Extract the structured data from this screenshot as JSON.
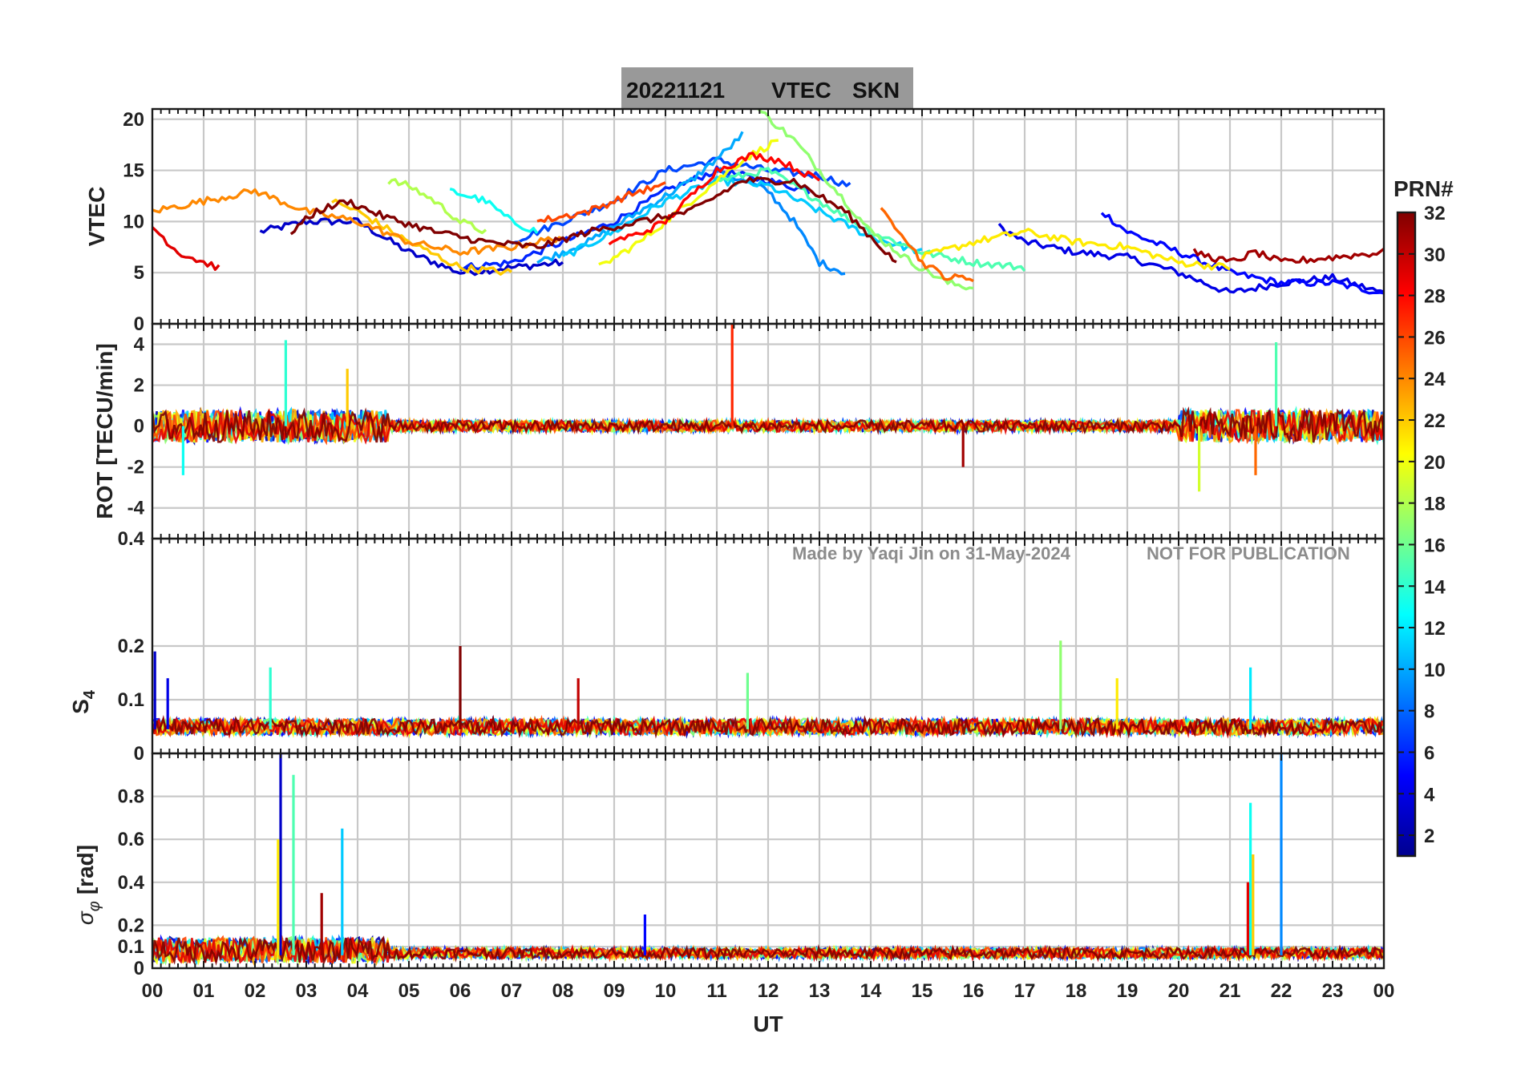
{
  "title": {
    "date": "20221121",
    "quantity": "VTEC",
    "station": "SKN"
  },
  "watermark": {
    "made_by": "Made by Yaqi Jin on 31-May-2024",
    "notice": "NOT FOR PUBLICATION"
  },
  "colorbar": {
    "title": "PRN#",
    "min": 1,
    "max": 32,
    "tick_labels": [
      "2",
      "4",
      "6",
      "8",
      "10",
      "12",
      "14",
      "16",
      "18",
      "20",
      "22",
      "24",
      "26",
      "28",
      "30",
      "32"
    ],
    "colormap": "jet",
    "colors": [
      "#00008f",
      "#0000ff",
      "#0080ff",
      "#00ffff",
      "#80ff80",
      "#ffff00",
      "#ff8000",
      "#ff0000",
      "#800000"
    ]
  },
  "chart_data": {
    "type": "line",
    "x_axis": {
      "label": "UT",
      "range": [
        0,
        24
      ],
      "unit": "hours",
      "tick_labels": [
        "00",
        "01",
        "02",
        "03",
        "04",
        "05",
        "06",
        "07",
        "08",
        "09",
        "10",
        "11",
        "12",
        "13",
        "14",
        "15",
        "16",
        "17",
        "18",
        "19",
        "20",
        "21",
        "22",
        "23",
        "00"
      ]
    },
    "panels": [
      {
        "id": "vtec",
        "ylabel": "VTEC",
        "ylim": [
          0,
          21
        ],
        "yticks": [
          0,
          5,
          10,
          15,
          20
        ],
        "ytick_labels": [
          "0",
          "5",
          "10",
          "15",
          "20"
        ],
        "series": [
          {
            "prn": 3,
            "points": [
              [
                2.1,
                9
              ],
              [
                3,
                10
              ],
              [
                4,
                10
              ],
              [
                5,
                7
              ],
              [
                6,
                5
              ],
              [
                7,
                5.5
              ],
              [
                8,
                6
              ]
            ]
          },
          {
            "prn": 4,
            "points": [
              [
                16.5,
                9.5
              ],
              [
                17,
                8
              ],
              [
                18,
                7
              ],
              [
                19,
                6.5
              ],
              [
                20,
                5
              ],
              [
                21,
                3
              ],
              [
                22,
                4
              ],
              [
                23,
                4.5
              ],
              [
                24,
                3
              ]
            ]
          },
          {
            "prn": 5,
            "points": [
              [
                18.5,
                11
              ],
              [
                19,
                9
              ],
              [
                20,
                7
              ],
              [
                21,
                5
              ],
              [
                22,
                4
              ],
              [
                23,
                4
              ],
              [
                24,
                3
              ]
            ]
          },
          {
            "prn": 6,
            "points": [
              [
                6,
                5.5
              ],
              [
                7,
                6
              ],
              [
                8,
                8
              ],
              [
                9,
                10
              ],
              [
                10,
                13
              ],
              [
                11,
                15
              ],
              [
                12,
                14
              ],
              [
                12.8,
                13
              ]
            ]
          },
          {
            "prn": 7,
            "points": [
              [
                7,
                8
              ],
              [
                8,
                10
              ],
              [
                9,
                12
              ],
              [
                10,
                15
              ],
              [
                11,
                16
              ],
              [
                12,
                15
              ],
              [
                13,
                14.5
              ],
              [
                13.6,
                13.5
              ]
            ]
          },
          {
            "prn": 9,
            "points": [
              [
                11,
                15
              ],
              [
                11.5,
                14
              ],
              [
                12,
                13
              ],
              [
                12.5,
                10
              ],
              [
                13,
                6
              ],
              [
                13.5,
                5
              ]
            ]
          },
          {
            "prn": 10,
            "points": [
              [
                7.5,
                6
              ],
              [
                8.5,
                8
              ],
              [
                9.5,
                11
              ],
              [
                10.5,
                14
              ],
              [
                11.2,
                17
              ],
              [
                11.5,
                18.5
              ]
            ]
          },
          {
            "prn": 11,
            "points": [
              [
                8,
                6.5
              ],
              [
                9,
                9
              ],
              [
                10,
                12
              ],
              [
                11,
                14
              ],
              [
                12,
                13.5
              ],
              [
                13,
                11
              ],
              [
                14,
                8.5
              ],
              [
                15,
                7
              ]
            ]
          },
          {
            "prn": 13,
            "points": [
              [
                5.8,
                13
              ],
              [
                6.5,
                12
              ],
              [
                7,
                10
              ],
              [
                7.5,
                9
              ]
            ]
          },
          {
            "prn": 15,
            "points": [
              [
                11,
                14
              ],
              [
                12,
                15
              ],
              [
                13,
                12
              ],
              [
                14,
                9
              ],
              [
                15,
                7
              ],
              [
                16,
                6
              ],
              [
                17,
                5.5
              ]
            ]
          },
          {
            "prn": 17,
            "points": [
              [
                11.8,
                21
              ],
              [
                12.5,
                18
              ],
              [
                13,
                15
              ],
              [
                14,
                9
              ],
              [
                14.8,
                6
              ],
              [
                15.5,
                4
              ],
              [
                16,
                3.5
              ]
            ]
          },
          {
            "prn": 18,
            "points": [
              [
                4.6,
                14
              ],
              [
                5,
                13.5
              ],
              [
                5.5,
                12
              ],
              [
                6,
                10
              ],
              [
                6.5,
                9
              ]
            ]
          },
          {
            "prn": 20,
            "points": [
              [
                8.7,
                5.5
              ],
              [
                9.5,
                8
              ],
              [
                10.5,
                12
              ],
              [
                11.5,
                16
              ],
              [
                12.2,
                18
              ]
            ]
          },
          {
            "prn": 21,
            "points": [
              [
                15,
                6.5
              ],
              [
                16,
                8
              ],
              [
                17,
                9
              ],
              [
                18,
                8
              ],
              [
                19,
                7.5
              ],
              [
                20,
                6
              ],
              [
                21,
                5.5
              ]
            ]
          },
          {
            "prn": 22,
            "points": [
              [
                3.5,
                12
              ],
              [
                4,
                11
              ],
              [
                5,
                8
              ],
              [
                6,
                5.5
              ],
              [
                7,
                5
              ]
            ]
          },
          {
            "prn": 24,
            "points": [
              [
                0,
                11
              ],
              [
                1,
                12
              ],
              [
                2,
                13
              ],
              [
                3,
                11
              ],
              [
                4,
                10
              ],
              [
                5,
                8
              ],
              [
                6,
                7
              ],
              [
                7,
                7.5
              ],
              [
                8,
                8.5
              ]
            ]
          },
          {
            "prn": 25,
            "points": [
              [
                14.2,
                11
              ],
              [
                14.6,
                9
              ],
              [
                15,
                6
              ],
              [
                15.5,
                4.5
              ],
              [
                16,
                4.5
              ]
            ]
          },
          {
            "prn": 26,
            "points": [
              [
                7.5,
                10
              ],
              [
                8.5,
                11
              ],
              [
                9.5,
                13
              ],
              [
                10,
                13.5
              ]
            ]
          },
          {
            "prn": 28,
            "points": [
              [
                8.9,
                8
              ],
              [
                9.5,
                8.8
              ],
              [
                10,
                10
              ],
              [
                10.5,
                12.5
              ],
              [
                11,
                15
              ],
              [
                11.7,
                16.5
              ],
              [
                12.2,
                16
              ],
              [
                13,
                14
              ]
            ]
          },
          {
            "prn": 29,
            "points": [
              [
                0,
                9.5
              ],
              [
                0.5,
                7
              ],
              [
                1,
                6
              ],
              [
                1.3,
                5.5
              ]
            ]
          },
          {
            "prn": 31,
            "points": [
              [
                20.3,
                7
              ],
              [
                21,
                6
              ],
              [
                21.5,
                7
              ],
              [
                22,
                6
              ],
              [
                23,
                6.5
              ],
              [
                24,
                7
              ]
            ]
          },
          {
            "prn": 32,
            "points": [
              [
                2.7,
                9
              ],
              [
                3.2,
                11
              ],
              [
                3.8,
                12
              ],
              [
                4.5,
                10.5
              ],
              [
                5.5,
                9
              ],
              [
                6.5,
                8
              ],
              [
                7.5,
                7.5
              ],
              [
                8.5,
                9
              ],
              [
                9.5,
                10
              ],
              [
                10.5,
                11
              ],
              [
                11.5,
                14
              ],
              [
                12.5,
                14
              ],
              [
                13.5,
                11
              ],
              [
                14.5,
                6
              ]
            ]
          }
        ]
      },
      {
        "id": "rot",
        "ylabel": "ROT [TECU/min]",
        "ylim": [
          -5.5,
          5
        ],
        "yticks": [
          -4,
          -2,
          0,
          2,
          4
        ],
        "ytick_labels": [
          "-4",
          "-2",
          "0",
          "2",
          "4"
        ],
        "spikes": [
          {
            "prn": 27,
            "x": 11.3,
            "value": 5
          },
          {
            "prn": 14,
            "x": 2.6,
            "value": 4.2
          },
          {
            "prn": 15,
            "x": 21.9,
            "value": 4.1
          },
          {
            "prn": 22,
            "x": 3.8,
            "value": 2.8
          },
          {
            "prn": 19,
            "x": 20.4,
            "value": -3.2
          },
          {
            "prn": 31,
            "x": 15.8,
            "value": -2
          },
          {
            "prn": 25,
            "x": 21.5,
            "value": -2.4
          },
          {
            "prn": 13,
            "x": 0.6,
            "value": -2.4
          }
        ]
      },
      {
        "id": "s4",
        "ylabel": "S4",
        "ylabel_main": "S",
        "ylabel_sub": "4",
        "ylim": [
          0,
          0.4
        ],
        "yticks": [
          0,
          0.1,
          0.2,
          0.4
        ],
        "ytick_labels": [
          "0",
          "0.1",
          "0.2",
          "0.4"
        ],
        "spikes": [
          {
            "prn": 32,
            "x": 6.0,
            "value": 0.2
          },
          {
            "prn": 17,
            "x": 17.7,
            "value": 0.21
          },
          {
            "prn": 12,
            "x": 21.4,
            "value": 0.16
          },
          {
            "prn": 14,
            "x": 2.3,
            "value": 0.16
          },
          {
            "prn": 16,
            "x": 11.6,
            "value": 0.15
          },
          {
            "prn": 4,
            "x": 0.3,
            "value": 0.14
          },
          {
            "prn": 30,
            "x": 8.3,
            "value": 0.14
          },
          {
            "prn": 21,
            "x": 18.8,
            "value": 0.14
          },
          {
            "prn": 3,
            "x": 0.05,
            "value": 0.19
          }
        ]
      },
      {
        "id": "sigma_phi",
        "ylabel": "σ_φ [rad]",
        "ylabel_main": "σ",
        "ylabel_sub": "φ",
        "ylabel_unit": "[rad]",
        "ylim": [
          0,
          1
        ],
        "yticks": [
          0,
          0.1,
          0.2,
          0.4,
          0.6,
          0.8
        ],
        "ytick_labels": [
          "0",
          "0.1",
          "0.2",
          "0.4",
          "0.6",
          "0.8"
        ],
        "spikes": [
          {
            "prn": 3,
            "x": 2.5,
            "value": 1.0
          },
          {
            "prn": 9,
            "x": 22.0,
            "value": 1.0
          },
          {
            "prn": 15,
            "x": 2.75,
            "value": 0.9
          },
          {
            "prn": 13,
            "x": 21.4,
            "value": 0.77
          },
          {
            "prn": 11,
            "x": 3.7,
            "value": 0.65
          },
          {
            "prn": 21,
            "x": 2.45,
            "value": 0.6
          },
          {
            "prn": 22,
            "x": 21.45,
            "value": 0.53
          },
          {
            "prn": 31,
            "x": 3.3,
            "value": 0.35
          },
          {
            "prn": 29,
            "x": 21.35,
            "value": 0.4
          },
          {
            "prn": 5,
            "x": 9.6,
            "value": 0.25
          }
        ]
      }
    ]
  }
}
